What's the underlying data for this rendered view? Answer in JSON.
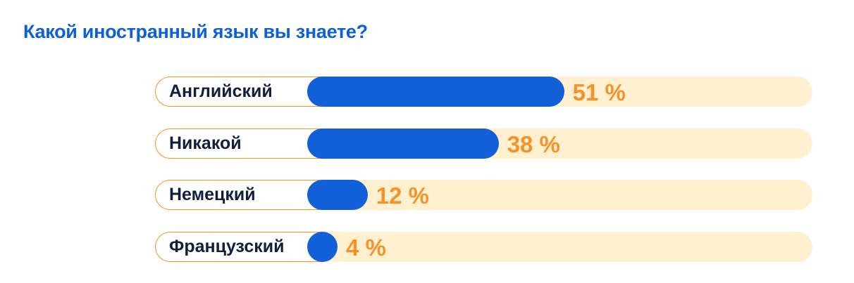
{
  "title": "Какой иностранный язык вы знаете?",
  "colors": {
    "title": "#0e5fd8",
    "bar": "#1160d8",
    "track": "#fff0cf",
    "value": "#f7922a",
    "label": "#0f1f3d",
    "pill_border": "#f7931e"
  },
  "rows": [
    {
      "label": "Английский",
      "value": 51,
      "value_label": "51 %"
    },
    {
      "label": "Никакой",
      "value": 38,
      "value_label": "38 %"
    },
    {
      "label": "Немецкий",
      "value": 12,
      "value_label": "12 %"
    },
    {
      "label": "Французский",
      "value": 4,
      "value_label": "4 %"
    }
  ],
  "chart_data": {
    "type": "bar",
    "orientation": "horizontal",
    "title": "Какой иностранный язык вы знаете?",
    "categories": [
      "Английский",
      "Никакой",
      "Немецкий",
      "Французский"
    ],
    "values": [
      51,
      38,
      12,
      4
    ],
    "unit": "%",
    "xlabel": "",
    "ylabel": "",
    "xlim": [
      0,
      100
    ],
    "grid": false,
    "legend": null
  }
}
